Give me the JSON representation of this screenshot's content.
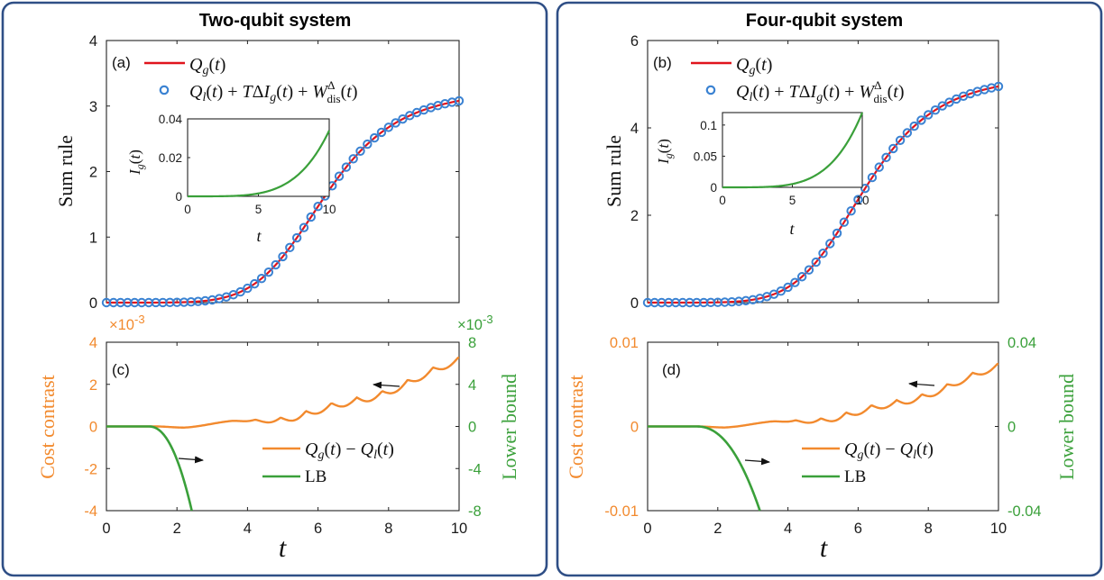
{
  "colors": {
    "frame": "#2f4f86",
    "qg_line": "#e0141c",
    "markers": "#3a82d2",
    "inset_line": "#3aa03a",
    "cost": "#f28a2e",
    "lb": "#3aa03a",
    "arrow": "#111111"
  },
  "panels": [
    {
      "title": "Two-qubit system",
      "top": {
        "label": "(a)",
        "ylabel": "Sum rule",
        "xlim": [
          0,
          10
        ],
        "ylim": [
          0,
          4
        ],
        "xticks": [
          0,
          2,
          4,
          6,
          8,
          10
        ],
        "yticks": [
          0,
          1,
          2,
          3,
          4
        ],
        "final_value": 3.08,
        "legend": [
          "Qg(t)",
          "Ql(t) + TΔIg(t) + W^Δ_dis(t)"
        ],
        "inset": {
          "ylabel": "Ig(t)",
          "xlabel": "t",
          "xlim": [
            0,
            10
          ],
          "ylim": [
            0,
            0.04
          ],
          "xticks": [
            0,
            5,
            10
          ],
          "yticks": [
            "0",
            "0.02",
            "0.04"
          ],
          "final_value": 0.034
        }
      },
      "bottom": {
        "label": "(c)",
        "xlabel": "t",
        "ylabel_left": "Cost contrast",
        "ylabel_right": "Lower bound",
        "xlim": [
          0,
          10
        ],
        "left_ylim": [
          -4,
          4
        ],
        "left_yticks": [
          "-4",
          "-2",
          "0",
          "2",
          "4"
        ],
        "left_multiplier": "×10",
        "left_exponent": "-3",
        "right_ylim": [
          -8,
          8
        ],
        "right_yticks": [
          "-8",
          "-4",
          "0",
          "4",
          "8"
        ],
        "right_multiplier": "×10",
        "right_exponent": "-3",
        "cost_final": 3.3,
        "lb_zero_until": 1.2,
        "lb_cross_bottom_at": 2.42,
        "legend": [
          "Qg(t) − Ql(t)",
          "LB"
        ]
      }
    },
    {
      "title": "Four-qubit system",
      "top": {
        "label": "(b)",
        "ylabel": "Sum rule",
        "xlim": [
          0,
          10
        ],
        "ylim": [
          0,
          6
        ],
        "xticks": [
          0,
          2,
          4,
          6,
          8,
          10
        ],
        "yticks": [
          0,
          2,
          4,
          6
        ],
        "final_value": 4.95,
        "legend": [
          "Qg(t)",
          "Ql(t) + TΔIg(t) + W^Δ_dis(t)"
        ],
        "inset": {
          "ylabel": "Ig(t)",
          "xlabel": "t",
          "xlim": [
            0,
            10
          ],
          "ylim": [
            0,
            0.12
          ],
          "xticks": [
            0,
            5,
            10
          ],
          "yticks": [
            "0",
            "0.05",
            "0.1"
          ],
          "final_value": 0.12
        }
      },
      "bottom": {
        "label": "(d)",
        "xlabel": "t",
        "ylabel_left": "Cost contrast",
        "ylabel_right": "Lower bound",
        "xlim": [
          0,
          10
        ],
        "left_ylim": [
          -0.01,
          0.01
        ],
        "left_yticks": [
          "-0.01",
          "0",
          "0.01"
        ],
        "right_ylim": [
          -0.04,
          0.04
        ],
        "right_yticks": [
          "-0.04",
          "0",
          "0.04"
        ],
        "cost_final": 0.0075,
        "lb_zero_until": 1.4,
        "lb_cross_bottom_at": 3.2,
        "legend": [
          "Qg(t) − Ql(t)",
          "LB"
        ]
      }
    }
  ]
}
